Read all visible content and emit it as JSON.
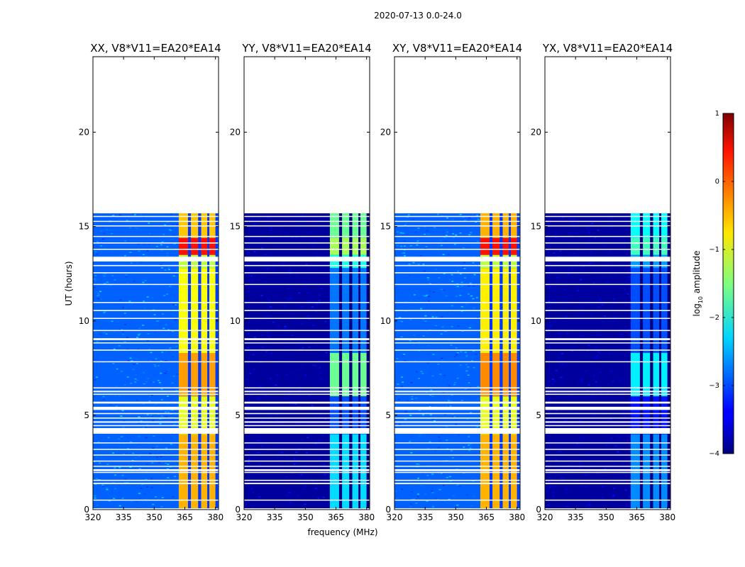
{
  "chart_data": {
    "type": "heatmap",
    "suptitle": "2020-07-13 0.0-24.0",
    "xlabel": "frequency (MHz)",
    "ylabel": "UT (hours)",
    "xlim": [
      320,
      381.5
    ],
    "ylim": [
      0,
      24
    ],
    "xticks": [
      "320",
      "335",
      "350",
      "365",
      "380"
    ],
    "yticks": [
      "0",
      "5",
      "10",
      "15",
      "20"
    ],
    "data_end_hour": 15.7,
    "flag_rows": [
      [
        0.0,
        0.07
      ],
      [
        0.48,
        0.53
      ],
      [
        1.35,
        1.42
      ],
      [
        1.52,
        1.58
      ],
      [
        1.95,
        2.0
      ],
      [
        2.04,
        2.14
      ],
      [
        2.28,
        2.32
      ],
      [
        2.55,
        2.6
      ],
      [
        2.88,
        2.92
      ],
      [
        3.18,
        3.22
      ],
      [
        3.52,
        3.56
      ],
      [
        4.02,
        4.08
      ],
      [
        4.08,
        4.32
      ],
      [
        4.42,
        4.48
      ],
      [
        4.6,
        4.68
      ],
      [
        4.82,
        4.88
      ],
      [
        5.06,
        5.12
      ],
      [
        5.28,
        5.45
      ],
      [
        5.62,
        5.72
      ],
      [
        6.08,
        6.14
      ],
      [
        6.22,
        6.3
      ],
      [
        6.42,
        6.48
      ],
      [
        7.82,
        7.86
      ],
      [
        8.42,
        8.48
      ],
      [
        8.82,
        8.86
      ],
      [
        8.98,
        9.08
      ],
      [
        9.46,
        9.52
      ],
      [
        10.12,
        10.16
      ],
      [
        10.52,
        10.58
      ],
      [
        10.95,
        11.0
      ],
      [
        11.92,
        11.96
      ],
      [
        12.52,
        12.58
      ],
      [
        12.9,
        12.96
      ],
      [
        13.15,
        13.35
      ],
      [
        13.35,
        13.4
      ],
      [
        13.78,
        13.82
      ],
      [
        14.1,
        14.16
      ],
      [
        14.45,
        14.5
      ],
      [
        15.02,
        15.06
      ],
      [
        15.25,
        15.3
      ],
      [
        15.52,
        15.56
      ]
    ],
    "subplots": [
      {
        "title": "XX, V8*V11=EA20*EA14",
        "baseline_log_amp": -2.9,
        "bright_band_mhz": [
          362,
          381
        ],
        "band_columns_mhz": [
          [
            362,
            366.5
          ],
          [
            368,
            371.5
          ],
          [
            373,
            376
          ],
          [
            377,
            380
          ]
        ],
        "band_log_amp": [
          [
            0,
            4,
            -0.5
          ],
          [
            4,
            6,
            -1.0
          ],
          [
            6,
            8.3,
            -0.4
          ],
          [
            8.3,
            12.8,
            -0.9
          ],
          [
            12.8,
            13.5,
            -1.2
          ],
          [
            13.5,
            14.4,
            0.3
          ],
          [
            14.4,
            15.7,
            -0.6
          ]
        ]
      },
      {
        "title": "YY, V8*V11=EA20*EA14",
        "baseline_log_amp": -3.85,
        "bright_band_mhz": [
          362,
          381
        ],
        "band_columns_mhz": [
          [
            362,
            366.5
          ],
          [
            368,
            371.5
          ],
          [
            373,
            376
          ],
          [
            377,
            380
          ]
        ],
        "band_log_amp": [
          [
            0,
            4,
            -2.3
          ],
          [
            4,
            6,
            -3.0
          ],
          [
            6,
            8.3,
            -1.6
          ],
          [
            8.3,
            12.8,
            -2.8
          ],
          [
            12.8,
            13.5,
            -2.0
          ],
          [
            13.5,
            14.4,
            -1.3
          ],
          [
            14.4,
            15.7,
            -1.6
          ]
        ]
      },
      {
        "title": "XY, V8*V11=EA20*EA14",
        "baseline_log_amp": -2.9,
        "bright_band_mhz": [
          362,
          381
        ],
        "band_columns_mhz": [
          [
            362,
            366.5
          ],
          [
            368,
            371.5
          ],
          [
            373,
            376
          ],
          [
            377,
            380
          ]
        ],
        "band_log_amp": [
          [
            0,
            4,
            -0.5
          ],
          [
            4,
            6,
            -1.0
          ],
          [
            6,
            8.3,
            -0.3
          ],
          [
            8.3,
            12.8,
            -0.8
          ],
          [
            12.8,
            13.5,
            -1.2
          ],
          [
            13.5,
            14.4,
            0.3
          ],
          [
            14.4,
            15.7,
            -0.5
          ]
        ]
      },
      {
        "title": "YX, V8*V11=EA20*EA14",
        "baseline_log_amp": -3.85,
        "bright_band_mhz": [
          362,
          381
        ],
        "band_columns_mhz": [
          [
            362,
            366.5
          ],
          [
            368,
            371.5
          ],
          [
            373,
            376
          ],
          [
            377,
            380
          ]
        ],
        "band_log_amp": [
          [
            0,
            4,
            -2.7
          ],
          [
            4,
            6,
            -3.3
          ],
          [
            6,
            8.3,
            -2.2
          ],
          [
            8.3,
            12.8,
            -3.0
          ],
          [
            12.8,
            13.5,
            -2.6
          ],
          [
            13.5,
            14.4,
            -1.8
          ],
          [
            14.4,
            15.7,
            -2.1
          ]
        ]
      }
    ],
    "colorbar": {
      "label": "log",
      "label_sub": "10",
      "label_suffix": " amplitude",
      "range": [
        -4,
        1
      ],
      "ticks": [
        "1",
        "0",
        "−1",
        "−2",
        "−3",
        "−4"
      ],
      "colormap": "jet"
    }
  }
}
